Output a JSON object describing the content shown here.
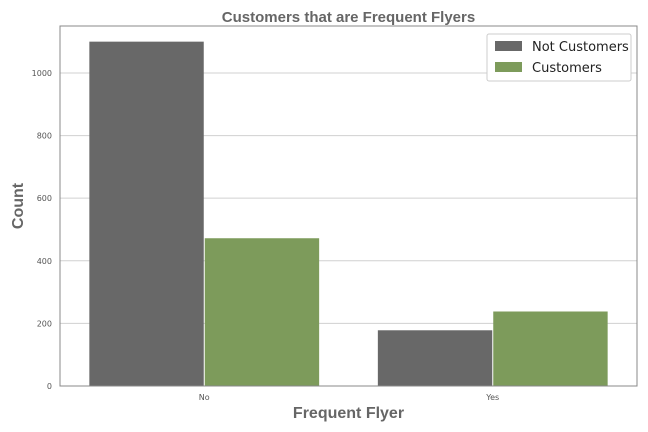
{
  "chart_data": {
    "type": "bar",
    "title": "Customers that are Frequent Flyers",
    "xlabel": "Frequent Flyer",
    "ylabel": "Count",
    "categories": [
      "No",
      "Yes"
    ],
    "series": [
      {
        "name": "Not Customers",
        "values": [
          1100,
          178
        ],
        "color": "#686868"
      },
      {
        "name": "Customers",
        "values": [
          472,
          238
        ],
        "color": "#7d9b5b"
      }
    ],
    "ylim": [
      0,
      1150
    ],
    "yticks": [
      0,
      200,
      400,
      600,
      800,
      1000
    ],
    "grid": true,
    "legend_position": "top-right"
  }
}
